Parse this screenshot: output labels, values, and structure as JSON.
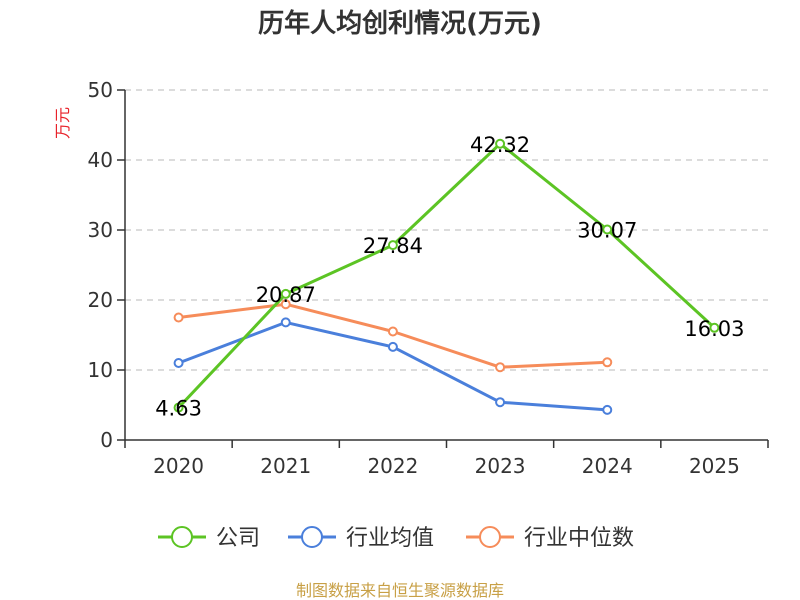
{
  "chart_data": {
    "type": "line",
    "title": "历年人均创利情况(万元)",
    "ylabel": "万元",
    "xlabel": "",
    "categories": [
      "2020",
      "2021",
      "2022",
      "2023",
      "2024",
      "2025"
    ],
    "ylim": [
      0,
      50
    ],
    "yticks": [
      0,
      10,
      20,
      30,
      40,
      50
    ],
    "grid": true,
    "legend_position": "bottom",
    "series": [
      {
        "name": "公司",
        "color": "#5cc424",
        "values": [
          4.63,
          20.87,
          27.84,
          42.32,
          30.07,
          16.03
        ],
        "labels": [
          "4.63",
          "20.87",
          "27.84",
          "42.32",
          "30.07",
          "16.03"
        ]
      },
      {
        "name": "行业均值",
        "color": "#4a7fdb",
        "values": [
          11.0,
          16.8,
          13.3,
          5.4,
          4.3,
          null
        ],
        "labels": []
      },
      {
        "name": "行业中位数",
        "color": "#f68c5a",
        "values": [
          17.5,
          19.4,
          15.5,
          10.4,
          11.1,
          null
        ],
        "labels": []
      }
    ]
  },
  "source": "制图数据来自恒生聚源数据库"
}
